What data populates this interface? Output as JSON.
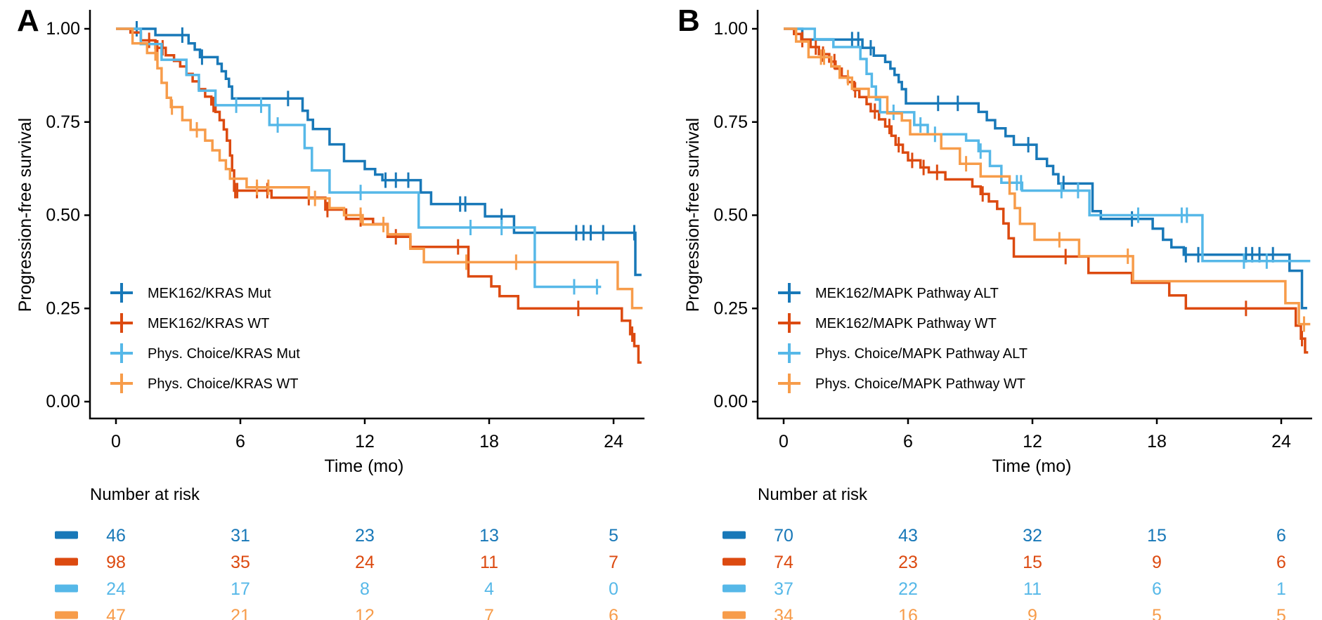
{
  "figure": {
    "background": "#ffffff",
    "axis_color": "#000000",
    "text_color": "#000000"
  },
  "chart_data": [
    {
      "type": "line",
      "subtype": "kaplan-meier-step",
      "panel_letter": "A",
      "xlabel": "Time (mo)",
      "ylabel": "Progression-free survival",
      "risk_table_title": "Number at risk",
      "xlim": [
        0,
        25.5
      ],
      "ylim": [
        0,
        1.0
      ],
      "xticks": [
        0,
        6,
        12,
        18,
        24
      ],
      "yticks": [
        "1.00",
        "0.75",
        "0.50",
        "0.25",
        "0.00"
      ],
      "grid": "off",
      "legend_position": "inside lower-left",
      "risk_times": [
        0,
        6,
        12,
        18,
        24
      ],
      "series": [
        {
          "name": "MEK162/KRAS Mut",
          "color": "#1878b8",
          "steps": [
            [
              0,
              1.0
            ],
            [
              1.9,
              0.983
            ],
            [
              3.5,
              0.961
            ],
            [
              3.8,
              0.944
            ],
            [
              4.05,
              0.924
            ],
            [
              4.9,
              0.906
            ],
            [
              5.1,
              0.886
            ],
            [
              5.3,
              0.866
            ],
            [
              5.45,
              0.845
            ],
            [
              5.6,
              0.813
            ],
            [
              9.0,
              0.78
            ],
            [
              9.25,
              0.756
            ],
            [
              9.5,
              0.731
            ],
            [
              10.3,
              0.69
            ],
            [
              11.0,
              0.645
            ],
            [
              12.0,
              0.624
            ],
            [
              12.5,
              0.609
            ],
            [
              12.85,
              0.594
            ],
            [
              14.7,
              0.561
            ],
            [
              15.2,
              0.53
            ],
            [
              17.8,
              0.497
            ],
            [
              19.2,
              0.453
            ],
            [
              25.05,
              0.34
            ],
            [
              25.35,
              0.34
            ]
          ],
          "censor_times": [
            1.0,
            3.2,
            4.15,
            8.3,
            13.0,
            13.5,
            14.1,
            16.6,
            16.85,
            18.6,
            22.2,
            22.55,
            22.9,
            23.5,
            25.0
          ],
          "number_at_risk": [
            46,
            31,
            23,
            13,
            5
          ]
        },
        {
          "name": "MEK162/KRAS WT",
          "color": "#dc4a10",
          "steps": [
            [
              0,
              1.0
            ],
            [
              0.7,
              0.99
            ],
            [
              1.2,
              0.969
            ],
            [
              1.9,
              0.949
            ],
            [
              2.4,
              0.929
            ],
            [
              2.8,
              0.914
            ],
            [
              3.1,
              0.899
            ],
            [
              3.4,
              0.879
            ],
            [
              3.7,
              0.859
            ],
            [
              4.0,
              0.838
            ],
            [
              4.3,
              0.818
            ],
            [
              4.6,
              0.797
            ],
            [
              4.8,
              0.777
            ],
            [
              5.0,
              0.755
            ],
            [
              5.2,
              0.73
            ],
            [
              5.35,
              0.7
            ],
            [
              5.5,
              0.66
            ],
            [
              5.6,
              0.62
            ],
            [
              5.7,
              0.566
            ],
            [
              7.5,
              0.547
            ],
            [
              10.1,
              0.515
            ],
            [
              11.1,
              0.49
            ],
            [
              12.4,
              0.476
            ],
            [
              13.1,
              0.442
            ],
            [
              14.2,
              0.415
            ],
            [
              17.0,
              0.336
            ],
            [
              18.1,
              0.309
            ],
            [
              18.5,
              0.283
            ],
            [
              19.4,
              0.25
            ],
            [
              24.4,
              0.217
            ],
            [
              24.8,
              0.181
            ],
            [
              25.0,
              0.149
            ],
            [
              25.2,
              0.105
            ],
            [
              25.35,
              0.105
            ]
          ],
          "censor_times": [
            1.6,
            2.0,
            2.25,
            4.7,
            5.75,
            5.85,
            6.8,
            7.3,
            9.3,
            10.2,
            11.8,
            13.5,
            16.5,
            22.3,
            24.9
          ],
          "number_at_risk": [
            98,
            35,
            24,
            11,
            7
          ]
        },
        {
          "name": "Phys. Choice/KRAS Mut",
          "color": "#56b8e8",
          "steps": [
            [
              0,
              1.0
            ],
            [
              1.2,
              0.959
            ],
            [
              2.2,
              0.917
            ],
            [
              3.4,
              0.876
            ],
            [
              4.0,
              0.834
            ],
            [
              4.8,
              0.795
            ],
            [
              7.4,
              0.742
            ],
            [
              9.1,
              0.68
            ],
            [
              9.45,
              0.62
            ],
            [
              10.3,
              0.561
            ],
            [
              14.6,
              0.467
            ],
            [
              20.2,
              0.308
            ],
            [
              23.4,
              0.308
            ]
          ],
          "censor_times": [
            5.8,
            7.0,
            7.8,
            11.8,
            17.1,
            18.6,
            22.1,
            23.2
          ],
          "number_at_risk": [
            24,
            17,
            8,
            4,
            0
          ]
        },
        {
          "name": "Phys. Choice/KRAS WT",
          "color": "#f79c4a",
          "steps": [
            [
              0,
              1.0
            ],
            [
              0.8,
              0.961
            ],
            [
              1.5,
              0.935
            ],
            [
              2.0,
              0.894
            ],
            [
              2.2,
              0.855
            ],
            [
              2.45,
              0.815
            ],
            [
              2.65,
              0.79
            ],
            [
              3.2,
              0.755
            ],
            [
              3.6,
              0.729
            ],
            [
              4.3,
              0.7
            ],
            [
              4.65,
              0.674
            ],
            [
              5.0,
              0.647
            ],
            [
              5.3,
              0.624
            ],
            [
              5.5,
              0.598
            ],
            [
              6.3,
              0.575
            ],
            [
              9.3,
              0.545
            ],
            [
              10.3,
              0.519
            ],
            [
              11.0,
              0.5
            ],
            [
              11.9,
              0.475
            ],
            [
              13.1,
              0.449
            ],
            [
              14.2,
              0.41
            ],
            [
              14.85,
              0.374
            ],
            [
              24.2,
              0.302
            ],
            [
              24.9,
              0.251
            ],
            [
              25.4,
              0.251
            ]
          ],
          "censor_times": [
            1.9,
            2.7,
            3.9,
            6.8,
            7.35,
            9.6,
            11.8,
            12.9,
            16.9,
            19.3
          ],
          "number_at_risk": [
            47,
            21,
            12,
            7,
            6
          ]
        }
      ]
    },
    {
      "type": "line",
      "subtype": "kaplan-meier-step",
      "panel_letter": "B",
      "xlabel": "Time (mo)",
      "ylabel": "Progression-free survival",
      "risk_table_title": "Number at risk",
      "xlim": [
        0,
        25.5
      ],
      "ylim": [
        0,
        1.0
      ],
      "xticks": [
        0,
        6,
        12,
        18,
        24
      ],
      "yticks": [
        "1.00",
        "0.75",
        "0.50",
        "0.25",
        "0.00"
      ],
      "grid": "off",
      "legend_position": "inside lower-left",
      "risk_times": [
        0,
        6,
        12,
        18,
        24
      ],
      "series": [
        {
          "name": "MEK162/MAPK Pathway ALT",
          "color": "#1878b8",
          "steps": [
            [
              0,
              1.0
            ],
            [
              0.9,
              0.971
            ],
            [
              3.8,
              0.949
            ],
            [
              4.35,
              0.928
            ],
            [
              4.9,
              0.911
            ],
            [
              5.15,
              0.893
            ],
            [
              5.35,
              0.876
            ],
            [
              5.55,
              0.857
            ],
            [
              5.7,
              0.838
            ],
            [
              5.9,
              0.8
            ],
            [
              9.4,
              0.777
            ],
            [
              9.8,
              0.755
            ],
            [
              10.2,
              0.733
            ],
            [
              10.7,
              0.712
            ],
            [
              11.1,
              0.689
            ],
            [
              12.2,
              0.651
            ],
            [
              12.7,
              0.632
            ],
            [
              13.0,
              0.61
            ],
            [
              13.25,
              0.585
            ],
            [
              14.9,
              0.511
            ],
            [
              15.3,
              0.49
            ],
            [
              17.8,
              0.464
            ],
            [
              18.3,
              0.434
            ],
            [
              18.7,
              0.414
            ],
            [
              19.3,
              0.394
            ],
            [
              24.4,
              0.351
            ],
            [
              25.0,
              0.251
            ],
            [
              25.25,
              0.251
            ]
          ],
          "censor_times": [
            3.3,
            3.6,
            4.2,
            7.45,
            8.4,
            11.8,
            13.5,
            16.8,
            19.4,
            20.0,
            22.3,
            22.6,
            22.95,
            23.6
          ],
          "number_at_risk": [
            70,
            43,
            32,
            15,
            6
          ]
        },
        {
          "name": "MEK162/MAPK Pathway WT",
          "color": "#dc4a10",
          "steps": [
            [
              0,
              1.0
            ],
            [
              0.5,
              0.986
            ],
            [
              0.85,
              0.971
            ],
            [
              1.3,
              0.951
            ],
            [
              1.7,
              0.932
            ],
            [
              2.2,
              0.912
            ],
            [
              2.5,
              0.893
            ],
            [
              2.8,
              0.872
            ],
            [
              3.1,
              0.857
            ],
            [
              3.4,
              0.836
            ],
            [
              3.65,
              0.817
            ],
            [
              4.0,
              0.798
            ],
            [
              4.2,
              0.779
            ],
            [
              4.6,
              0.757
            ],
            [
              4.9,
              0.738
            ],
            [
              5.2,
              0.713
            ],
            [
              5.4,
              0.689
            ],
            [
              5.75,
              0.668
            ],
            [
              6.0,
              0.647
            ],
            [
              6.6,
              0.628
            ],
            [
              7.0,
              0.615
            ],
            [
              7.8,
              0.596
            ],
            [
              9.1,
              0.577
            ],
            [
              9.5,
              0.557
            ],
            [
              9.9,
              0.537
            ],
            [
              10.3,
              0.517
            ],
            [
              10.6,
              0.478
            ],
            [
              10.85,
              0.438
            ],
            [
              11.1,
              0.389
            ],
            [
              14.7,
              0.345
            ],
            [
              16.8,
              0.319
            ],
            [
              18.6,
              0.285
            ],
            [
              19.4,
              0.25
            ],
            [
              24.7,
              0.204
            ],
            [
              24.95,
              0.169
            ],
            [
              25.15,
              0.132
            ],
            [
              25.3,
              0.132
            ]
          ],
          "censor_times": [
            0.9,
            1.55,
            1.9,
            2.45,
            3.45,
            4.4,
            5.1,
            5.55,
            6.2,
            6.75,
            7.4,
            9.6,
            13.6,
            22.3,
            25.0
          ],
          "number_at_risk": [
            74,
            23,
            15,
            9,
            6
          ]
        },
        {
          "name": "Phys. Choice/MAPK Pathway ALT",
          "color": "#56b8e8",
          "steps": [
            [
              0,
              1.0
            ],
            [
              1.5,
              0.972
            ],
            [
              2.4,
              0.951
            ],
            [
              3.7,
              0.919
            ],
            [
              4.0,
              0.879
            ],
            [
              4.25,
              0.845
            ],
            [
              4.45,
              0.81
            ],
            [
              4.65,
              0.776
            ],
            [
              6.3,
              0.742
            ],
            [
              6.95,
              0.717
            ],
            [
              8.8,
              0.7
            ],
            [
              9.4,
              0.672
            ],
            [
              9.95,
              0.632
            ],
            [
              10.5,
              0.587
            ],
            [
              11.5,
              0.566
            ],
            [
              14.75,
              0.5
            ],
            [
              20.2,
              0.377
            ],
            [
              25.4,
              0.377
            ]
          ],
          "censor_times": [
            5.3,
            6.6,
            7.3,
            9.5,
            11.25,
            11.45,
            13.4,
            14.2,
            17.1,
            19.2,
            19.45,
            22.2,
            23.3
          ],
          "number_at_risk": [
            37,
            22,
            11,
            6,
            1
          ]
        },
        {
          "name": "Phys. Choice/MAPK Pathway WT",
          "color": "#f79c4a",
          "steps": [
            [
              0,
              1.0
            ],
            [
              0.6,
              0.966
            ],
            [
              1.2,
              0.924
            ],
            [
              2.3,
              0.899
            ],
            [
              2.7,
              0.869
            ],
            [
              3.3,
              0.839
            ],
            [
              4.1,
              0.817
            ],
            [
              5.0,
              0.773
            ],
            [
              5.7,
              0.754
            ],
            [
              6.1,
              0.717
            ],
            [
              7.6,
              0.679
            ],
            [
              8.5,
              0.638
            ],
            [
              9.5,
              0.604
            ],
            [
              10.9,
              0.558
            ],
            [
              11.15,
              0.519
            ],
            [
              11.4,
              0.477
            ],
            [
              12.1,
              0.434
            ],
            [
              14.25,
              0.39
            ],
            [
              16.85,
              0.323
            ],
            [
              24.2,
              0.264
            ],
            [
              24.85,
              0.208
            ],
            [
              25.4,
              0.208
            ]
          ],
          "censor_times": [
            1.8,
            1.95,
            3.1,
            8.8,
            13.3,
            16.6,
            25.1
          ],
          "number_at_risk": [
            34,
            16,
            9,
            5,
            5
          ]
        }
      ]
    }
  ]
}
